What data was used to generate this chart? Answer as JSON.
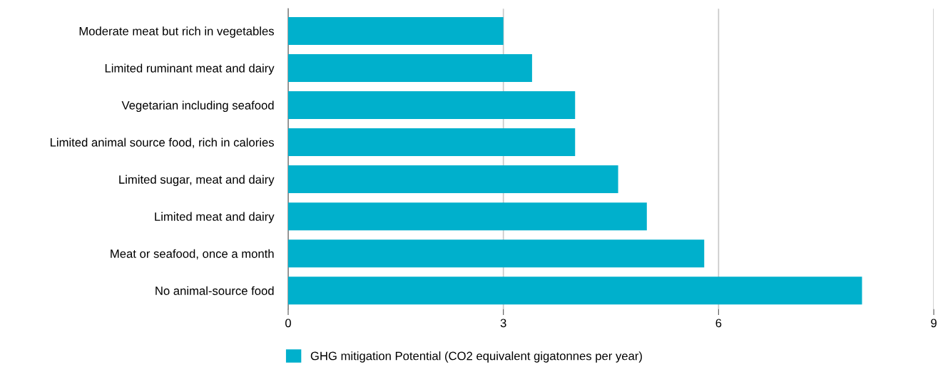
{
  "chart_data": {
    "type": "bar",
    "orientation": "horizontal",
    "categories": [
      "Moderate meat but rich in vegetables",
      "Limited ruminant meat and dairy",
      "Vegetarian including seafood",
      "Limited animal source food, rich in calories",
      "Limited sugar, meat and dairy",
      "Limited meat and dairy",
      "Meat or seafood, once a month",
      "No animal-source food"
    ],
    "series": [
      {
        "name": "GHG mitigation Potential (CO2 equivalent gigatonnes per year)",
        "color": "#00b0cc",
        "values": [
          3.0,
          3.4,
          4.0,
          4.0,
          4.6,
          5.0,
          5.8,
          8.0
        ]
      }
    ],
    "xlim": [
      0,
      9
    ],
    "xticks": [
      0,
      3,
      6,
      9
    ],
    "grid": "x",
    "legend": "bottom"
  }
}
